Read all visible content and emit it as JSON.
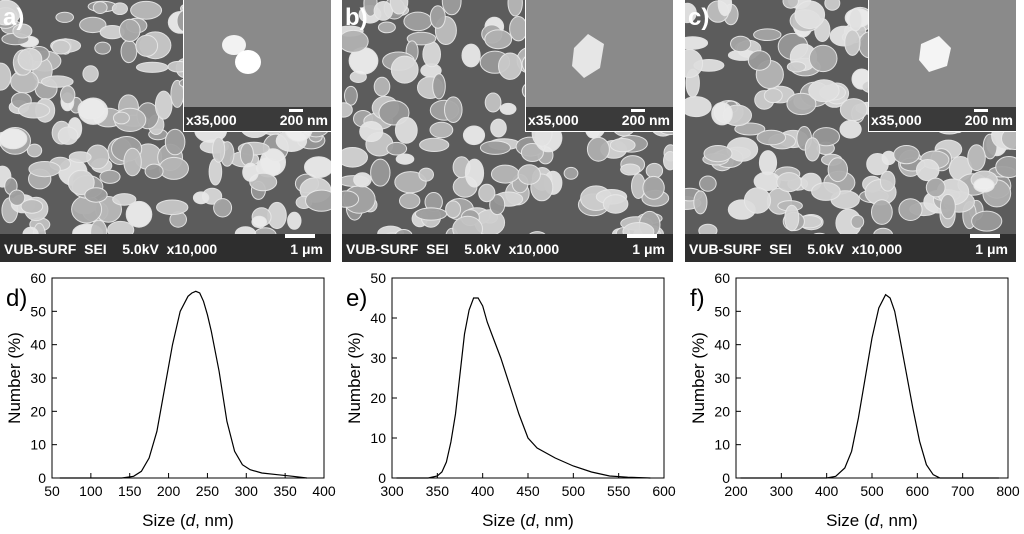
{
  "sem_panels": [
    {
      "letter": "a)",
      "inset_mag": "x35,000",
      "inset_scale": "200 nm",
      "info": "VUB-SURF  SEI    5.0kV  x10,000",
      "scale": "1 μm"
    },
    {
      "letter": "b)",
      "inset_mag": "x35,000",
      "inset_scale": "200 nm",
      "info": "VUB-SURF  SEI    5.0kV  x10,000",
      "scale": "1 μm"
    },
    {
      "letter": "c)",
      "inset_mag": "x35,000",
      "inset_scale": "200 nm",
      "info": "VUB-SURF  SEI    5.0kV  x10,000",
      "scale": "1 μm"
    }
  ],
  "chart_data": [
    {
      "type": "line",
      "panel_label": "d)",
      "xlabel_prefix": "Size (",
      "xlabel_var": "d",
      "xlabel_suffix": ", nm)",
      "ylabel": "Number (%)",
      "xlim": [
        50,
        400
      ],
      "ylim": [
        0,
        60
      ],
      "xticks": [
        50,
        100,
        150,
        200,
        250,
        300,
        350,
        400
      ],
      "yticks": [
        0,
        10,
        20,
        30,
        40,
        50,
        60
      ],
      "grid": false,
      "series": [
        {
          "x": [
            60,
            140,
            155,
            165,
            175,
            185,
            195,
            205,
            215,
            225,
            230,
            235,
            240,
            245,
            250,
            255,
            265,
            275,
            285,
            295,
            305,
            320,
            340,
            360,
            378
          ],
          "y": [
            0,
            0,
            0.5,
            2,
            6,
            14,
            27,
            40,
            50,
            54.5,
            55.5,
            56,
            55.5,
            53,
            49,
            44,
            32,
            17,
            8,
            4,
            2.5,
            1.5,
            1,
            0.5,
            0
          ]
        }
      ]
    },
    {
      "type": "line",
      "panel_label": "e)",
      "xlabel_prefix": "Size (",
      "xlabel_var": "d",
      "xlabel_suffix": ", nm)",
      "ylabel": "Number (%)",
      "xlim": [
        300,
        600
      ],
      "ylim": [
        0,
        50
      ],
      "xticks": [
        300,
        350,
        400,
        450,
        500,
        550,
        600
      ],
      "yticks": [
        0,
        10,
        20,
        30,
        40,
        50
      ],
      "grid": false,
      "series": [
        {
          "x": [
            305,
            340,
            350,
            355,
            360,
            365,
            370,
            375,
            380,
            385,
            390,
            395,
            400,
            405,
            410,
            420,
            430,
            440,
            450,
            460,
            480,
            500,
            520,
            540,
            560,
            585
          ],
          "y": [
            0,
            0,
            0.5,
            1.5,
            4,
            9,
            16,
            26,
            36,
            42,
            45,
            45,
            43,
            39,
            36,
            30,
            23,
            16,
            10,
            7.5,
            5,
            3,
            1.5,
            0.5,
            0.2,
            0
          ]
        }
      ]
    },
    {
      "type": "line",
      "panel_label": "f)",
      "xlabel_prefix": "Size (",
      "xlabel_var": "d",
      "xlabel_suffix": ", nm)",
      "ylabel": "Number (%)",
      "xlim": [
        200,
        800
      ],
      "ylim": [
        0,
        60
      ],
      "xticks": [
        200,
        300,
        400,
        500,
        600,
        700,
        800
      ],
      "yticks": [
        0,
        10,
        20,
        30,
        40,
        50,
        60
      ],
      "grid": false,
      "series": [
        {
          "x": [
            210,
            400,
            420,
            440,
            455,
            470,
            485,
            500,
            515,
            530,
            540,
            550,
            560,
            575,
            590,
            605,
            620,
            635,
            650,
            680,
            780
          ],
          "y": [
            0,
            0,
            0.5,
            3,
            8,
            18,
            30,
            42,
            51,
            55,
            54,
            50,
            43,
            32,
            21,
            11,
            4,
            1,
            0,
            0,
            0
          ]
        }
      ]
    }
  ]
}
